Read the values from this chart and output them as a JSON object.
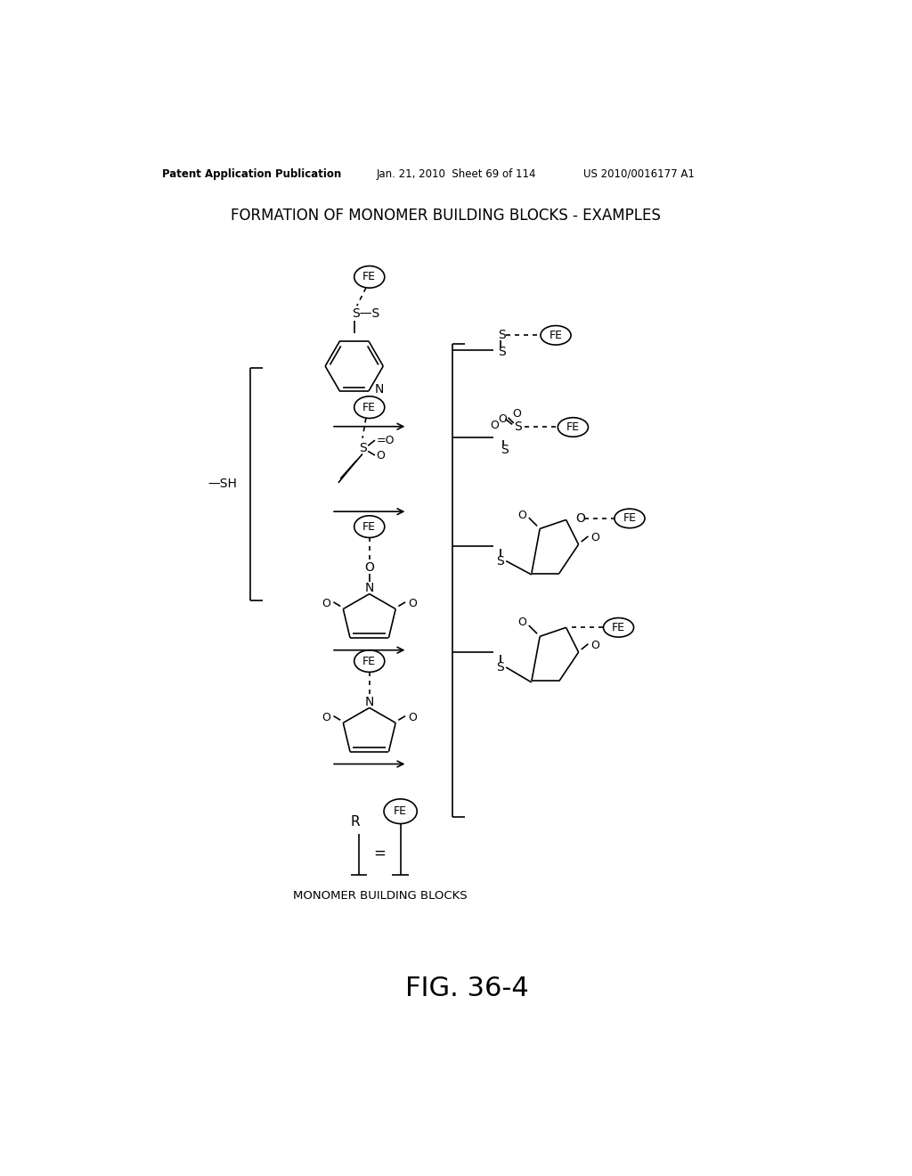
{
  "title": "FORMATION OF MONOMER BUILDING BLOCKS - EXAMPLES",
  "header_left": "Patent Application Publication",
  "header_center": "Jan. 21, 2010  Sheet 69 of 114",
  "header_right": "US 2010/0016177 A1",
  "footer_label": "MONOMER BUILDING BLOCKS",
  "fig_label": "FIG. 36-4",
  "background": "#ffffff"
}
